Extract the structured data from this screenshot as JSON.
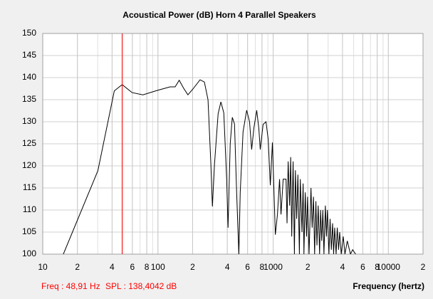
{
  "chart_data": {
    "type": "line",
    "title": "Acoustical Power (dB)   Horn   4 Parallel Speakers",
    "x_label": "Frequency (hertz)",
    "log_x": true,
    "grid": true,
    "color": "#000000",
    "xlim": [
      10,
      20000
    ],
    "ylim": [
      100,
      150
    ],
    "xticks": [
      10,
      {
        "value": 20,
        "label": "2"
      },
      {
        "value": 40,
        "label": "4"
      },
      {
        "value": 60,
        "label": "6"
      },
      {
        "value": 80,
        "label": "8"
      },
      100,
      {
        "value": 200,
        "label": "2"
      },
      {
        "value": 400,
        "label": "4"
      },
      {
        "value": 600,
        "label": "6"
      },
      {
        "value": 800,
        "label": "8"
      },
      1000,
      {
        "value": 2000,
        "label": "2"
      },
      {
        "value": 4000,
        "label": "4"
      },
      {
        "value": 6000,
        "label": "6"
      },
      {
        "value": 8000,
        "label": "8"
      },
      10000,
      {
        "value": 20000,
        "label": "2"
      }
    ],
    "yticks": [
      100,
      105,
      110,
      115,
      120,
      125,
      130,
      135,
      140,
      145,
      150
    ],
    "x": [
      15.1,
      30.1,
      41.8,
      48.91,
      59.7,
      74.1,
      98.6,
      127.5,
      141,
      153,
      167,
      182,
      201,
      232,
      253,
      272,
      288,
      297,
      310,
      333,
      352,
      373,
      395,
      406,
      424,
      442,
      462,
      482,
      504,
      518,
      548,
      589,
      624,
      651,
      680,
      720,
      751,
      773,
      818,
      867,
      906,
      945,
      986,
      1045,
      1090,
      1137,
      1170,
      1222,
      1294,
      1320,
      1350,
      1390,
      1420,
      1450,
      1490,
      1530,
      1560,
      1600,
      1640,
      1690,
      1720,
      1780,
      1820,
      1850,
      1900,
      1950,
      1990,
      2050,
      2130,
      2180,
      2240,
      2290,
      2350,
      2400,
      2460,
      2530,
      2580,
      2640,
      2700,
      2760,
      2840,
      2900,
      2960,
      3050,
      3120,
      3200,
      3280,
      3350,
      3420,
      3520,
      3600,
      3700,
      3780,
      3900,
      4060,
      4200,
      4400,
      4690,
      4900,
      5200
    ],
    "values": [
      100,
      118.9,
      137,
      138.4042,
      136.6,
      136.1,
      137.1,
      137.9,
      137.9,
      139.4,
      137.6,
      136.1,
      137.4,
      139.5,
      139,
      135,
      120.5,
      110.8,
      120.5,
      131.8,
      134.5,
      132,
      117,
      106,
      125,
      131,
      129.5,
      114,
      100,
      114,
      127.7,
      132.6,
      130,
      123.7,
      128.5,
      132.6,
      128.5,
      123.7,
      129.4,
      130,
      126,
      115.6,
      125.3,
      104.4,
      109,
      117,
      109,
      117,
      117,
      107,
      121,
      111,
      122,
      104,
      121,
      100,
      119,
      108,
      118,
      100,
      117,
      105,
      116,
      100,
      114,
      104,
      113,
      100,
      115,
      106,
      113,
      100,
      112,
      102,
      111,
      100,
      110,
      103,
      110,
      100,
      111,
      104,
      110,
      100,
      108,
      101,
      107,
      100,
      106,
      100,
      106,
      101,
      105,
      100,
      104,
      100,
      103,
      100,
      101,
      100
    ],
    "cursor": {
      "freq": 48.91,
      "color": "#ff0000",
      "freq_label": "Freq : 48,91 Hz",
      "spl_label": "SPL : 138,4042 dB"
    }
  }
}
